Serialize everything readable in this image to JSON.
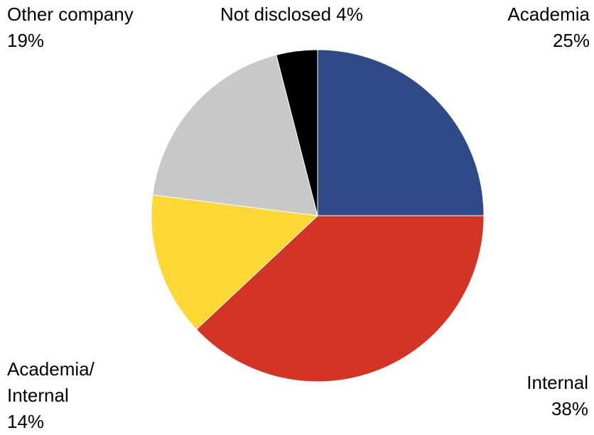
{
  "chart_data": {
    "type": "pie",
    "start_angle_deg": 0,
    "direction": "clockwise",
    "slices": [
      {
        "name": "Academia",
        "value": 25,
        "label": "25%",
        "color": "#2E4A87"
      },
      {
        "name": "Internal",
        "value": 38,
        "label": "38%",
        "color": "#D43425"
      },
      {
        "name": "Academia/ Internal",
        "value": 14,
        "label": "14%",
        "color": "#FDD835"
      },
      {
        "name": "Other company",
        "value": 19,
        "label": "19%",
        "color": "#C8C8C8"
      },
      {
        "name": "Not disclosed",
        "value": 4,
        "label": "4%",
        "color": "#000000"
      }
    ],
    "labels": {
      "academia": {
        "line1": "Academia",
        "line2": "25%"
      },
      "internal": {
        "line1": "Internal",
        "line2": "38%"
      },
      "academia_internal": {
        "line1": "Academia/",
        "line2": "Internal",
        "line3": "14%"
      },
      "other_company": {
        "line1": "Other company",
        "line2": "19%"
      },
      "not_disclosed": {
        "line1": "Not disclosed 4%"
      }
    },
    "legend": "none"
  }
}
